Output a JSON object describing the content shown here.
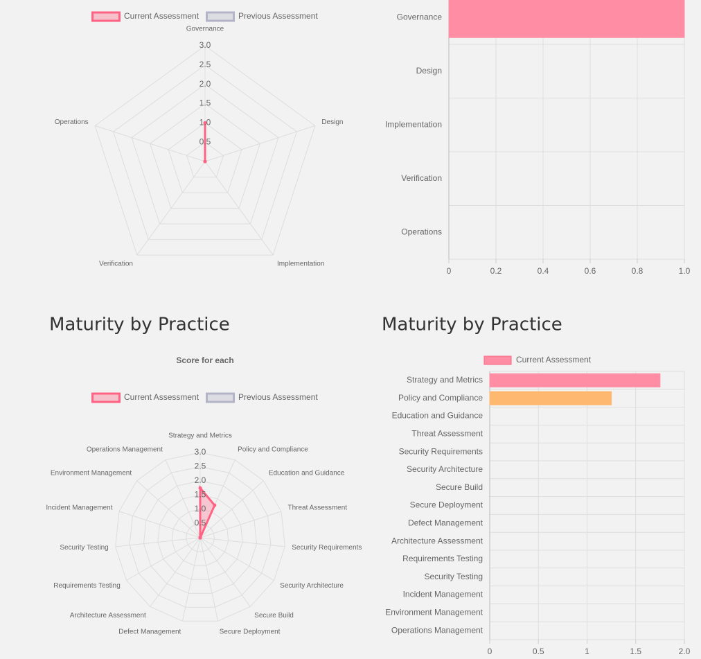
{
  "chart_data": [
    {
      "type": "radar",
      "categories": [
        "Governance",
        "Design",
        "Implementation",
        "Verification",
        "Operations"
      ],
      "series": [
        {
          "name": "Current Assessment",
          "color": "#ff6384",
          "values": [
            1,
            0,
            0,
            0,
            0
          ]
        },
        {
          "name": "Previous Assessment",
          "color": "#b4b4c8",
          "values": [
            0,
            0,
            0,
            0,
            0
          ]
        }
      ],
      "rlim": [
        0,
        3
      ],
      "rticks": [
        0.5,
        {
          "value": 1,
          "label": "1.0"
        },
        1.5,
        {
          "value": 2,
          "label": "2.0"
        },
        2.5,
        {
          "value": 3,
          "label": "3.0"
        }
      ],
      "grid": true
    },
    {
      "type": "hbar",
      "categories": [
        "Governance",
        "Design",
        "Implementation",
        "Verification",
        "Operations"
      ],
      "values": [
        1,
        0,
        0,
        0,
        0
      ],
      "color": "#ff8ea4",
      "xlim": [
        0,
        1
      ],
      "xticks": [
        0,
        0.2,
        0.4,
        0.6,
        0.8,
        {
          "value": 1,
          "label": "1.0"
        }
      ],
      "grid": true
    },
    {
      "type": "radar",
      "title": "Maturity by Practice",
      "subtitle": "Score for each",
      "categories": [
        "Strategy and Metrics",
        "Policy and Compliance",
        "Education and Guidance",
        "Threat Assessment",
        "Security Requirements",
        "Security Architecture",
        "Secure Build",
        "Secure Deployment",
        "Defect Management",
        "Architecture Assessment",
        "Requirements Testing",
        "Security Testing",
        "Incident Management",
        "Environment Management",
        "Operations Management"
      ],
      "series": [
        {
          "name": "Current Assessment",
          "color": "#ff6384",
          "values": [
            1.75,
            1.25,
            0,
            0,
            0,
            0,
            0,
            0,
            0,
            0,
            0,
            0,
            0,
            0,
            0
          ]
        },
        {
          "name": "Previous Assessment",
          "color": "#b4b4c8",
          "values": [
            0,
            0,
            0,
            0,
            0,
            0,
            0,
            0,
            0,
            0,
            0,
            0,
            0,
            0,
            0
          ]
        }
      ],
      "rlim": [
        0,
        3
      ],
      "rticks": [
        0.5,
        {
          "value": 1,
          "label": "1.0"
        },
        1.5,
        {
          "value": 2,
          "label": "2.0"
        },
        2.5,
        {
          "value": 3,
          "label": "3.0"
        }
      ],
      "grid": true
    },
    {
      "type": "hbar",
      "title": "Maturity by Practice",
      "categories": [
        "Strategy and Metrics",
        "Policy and Compliance",
        "Education and Guidance",
        "Threat Assessment",
        "Security Requirements",
        "Security Architecture",
        "Secure Build",
        "Secure Deployment",
        "Defect Management",
        "Architecture Assessment",
        "Requirements Testing",
        "Security Testing",
        "Incident Management",
        "Environment Management",
        "Operations Management"
      ],
      "series": [
        {
          "name": "Current Assessment",
          "color": "#ff8ea4",
          "values": [
            1.75,
            1.25,
            0,
            0,
            0,
            0,
            0,
            0,
            0,
            0,
            0,
            0,
            0,
            0,
            0
          ]
        }
      ],
      "bar_colors": [
        "#ff8ea4",
        "#ffb870",
        "#ffd980",
        "#8cd3d3",
        "#85c1f0",
        "#b899ff",
        "#d9dadd",
        "#ff8ea4",
        "#ffb870",
        "#ffd980",
        "#8cd3d3",
        "#85c1f0",
        "#b899ff",
        "#d9dadd",
        "#ff8ea4"
      ],
      "xlim": [
        0,
        2
      ],
      "xticks": [
        0,
        0.5,
        1,
        1.5,
        {
          "value": 2,
          "label": "2.0"
        }
      ],
      "grid": true
    }
  ]
}
